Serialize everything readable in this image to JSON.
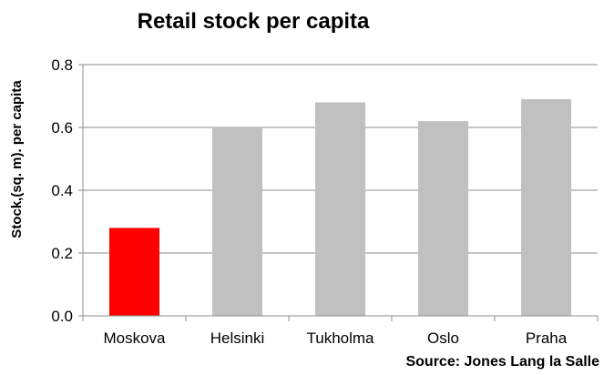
{
  "chart_data": {
    "type": "bar",
    "title": "Retail stock per capita",
    "ylabel": "Stock,(sq. m). per capita",
    "xlabel": "",
    "categories": [
      "Moskova",
      "Helsinki",
      "Tukholma",
      "Oslo",
      "Praha"
    ],
    "values": [
      0.28,
      0.6,
      0.68,
      0.62,
      0.69
    ],
    "bar_colors": [
      "#ff0000",
      "#c0c0c0",
      "#c0c0c0",
      "#c0c0c0",
      "#c0c0c0"
    ],
    "ylim": [
      0,
      0.8
    ],
    "yticks": [
      "0.0",
      "0.2",
      "0.4",
      "0.6",
      "0.8"
    ],
    "grid": true,
    "grid_color": "#8c8c8c",
    "source": "Source: Jones Lang la Salle"
  }
}
